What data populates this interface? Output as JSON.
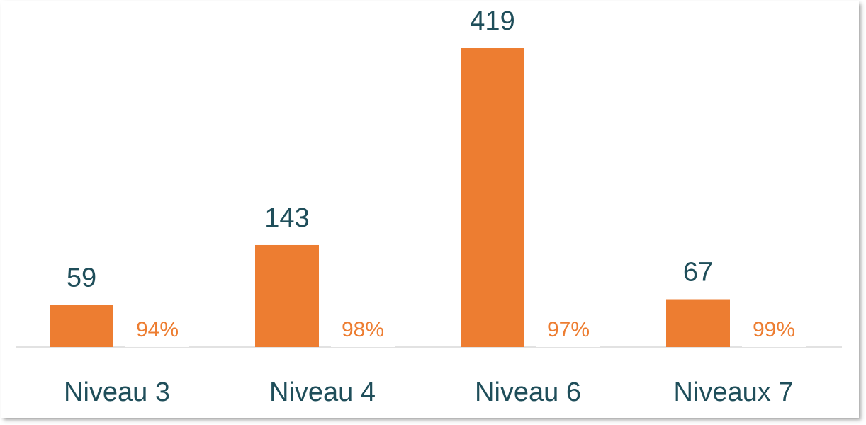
{
  "chart_data": {
    "type": "bar",
    "categories": [
      "Niveau 3",
      "Niveau 4",
      "Niveau 6",
      "Niveaux  7"
    ],
    "series": [
      {
        "color": "#ed7d31",
        "values": [
          59,
          143,
          419,
          67
        ]
      },
      {
        "color": "#ffffff",
        "values": [
          0.94,
          0.98,
          0.97,
          0.99
        ],
        "value_labels": [
          "94%",
          "98%",
          "97%",
          "99%"
        ]
      }
    ],
    "ylim": [
      0,
      420
    ]
  }
}
